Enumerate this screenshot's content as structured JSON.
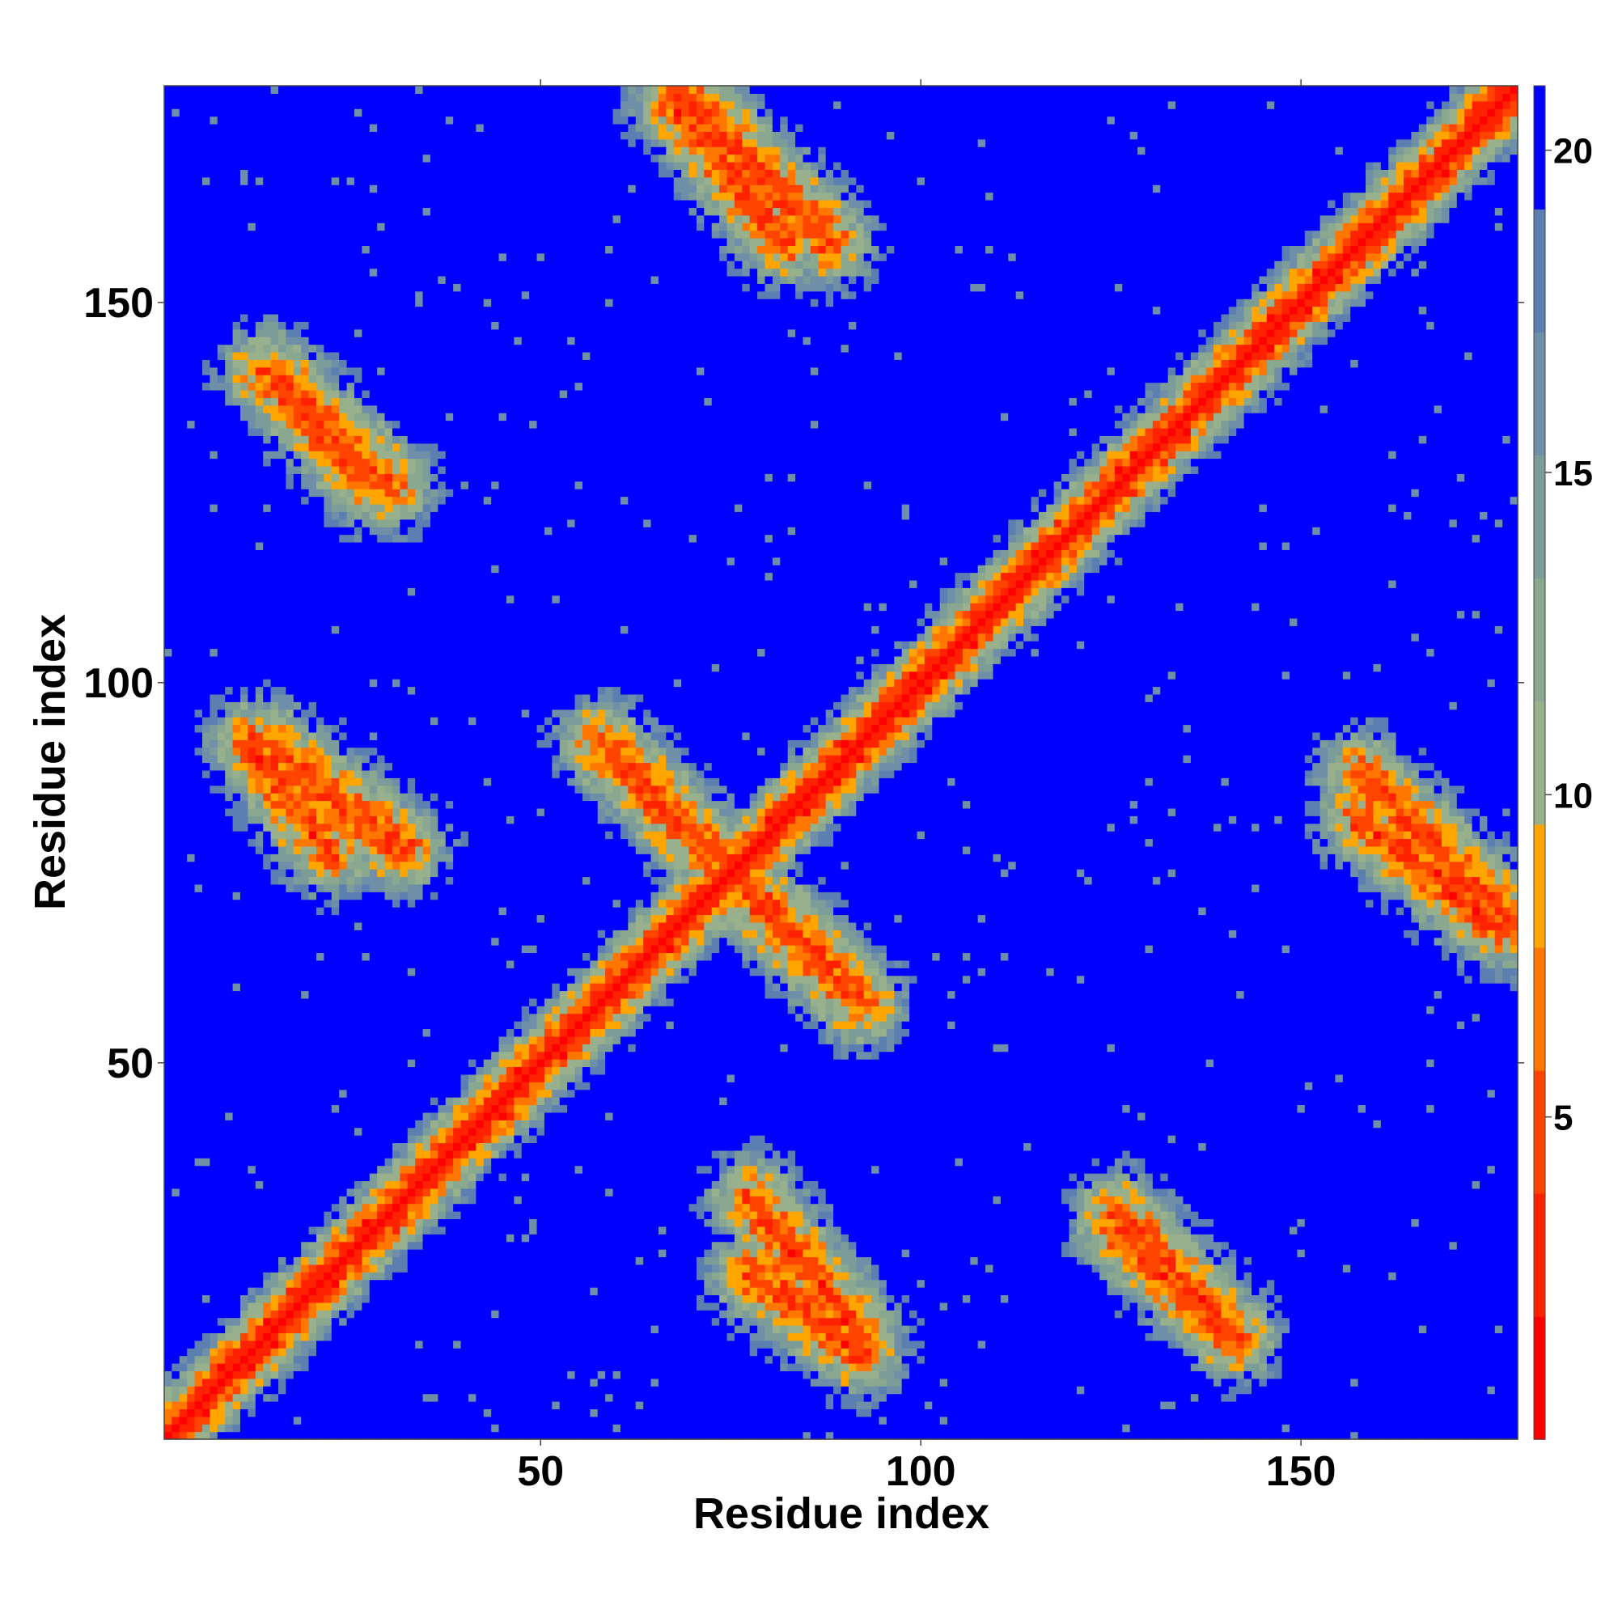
{
  "chart_data": {
    "type": "heatmap",
    "title": "",
    "xlabel": "Residue index",
    "ylabel": "Residue index",
    "xlim": [
      1,
      178
    ],
    "ylim": [
      1,
      178
    ],
    "x_ticks": [
      50,
      100,
      150
    ],
    "y_ticks": [
      50,
      100,
      150
    ],
    "x_tick_labels": [
      "50",
      "100",
      "150"
    ],
    "y_tick_labels": [
      "50",
      "100",
      "150"
    ],
    "colorbar": {
      "range": [
        0,
        21
      ],
      "ticks": [
        5,
        10,
        15,
        20
      ],
      "tick_labels": [
        "5",
        "10",
        "15",
        "20"
      ],
      "colors": [
        "#ff0000",
        "#ff2200",
        "#ff4400",
        "#ff7700",
        "#ffa500",
        "#99b08c",
        "#8aa78f",
        "#7c9c99",
        "#6f8fa8",
        "#5b7fb0",
        "#0000ff"
      ]
    },
    "diagonal_band": {
      "from": 1,
      "to": 178
    },
    "contact_bands": [
      {
        "name": "antidiagonal-strand-1",
        "start": [
          58,
          92
        ],
        "end": [
          92,
          58
        ]
      },
      {
        "name": "antidiagonal-strand-2",
        "start": [
          68,
          178
        ],
        "end": [
          88,
          158
        ]
      },
      {
        "name": "parallel-strand-1",
        "start": [
          14,
          141
        ],
        "end": [
          28,
          126
        ]
      },
      {
        "name": "parallel-strand-2",
        "start": [
          14,
          92
        ],
        "end": [
          32,
          78
        ]
      },
      {
        "name": "parallel-strand-3",
        "start": [
          78,
          22
        ],
        "end": [
          92,
          12
        ]
      },
      {
        "name": "parallel-strand-4",
        "start": [
          126,
          30
        ],
        "end": [
          141,
          14
        ]
      },
      {
        "name": "parallel-strand-5",
        "start": [
          158,
          82
        ],
        "end": [
          176,
          68
        ]
      }
    ],
    "grid": false,
    "legend": "colorbar-right"
  }
}
